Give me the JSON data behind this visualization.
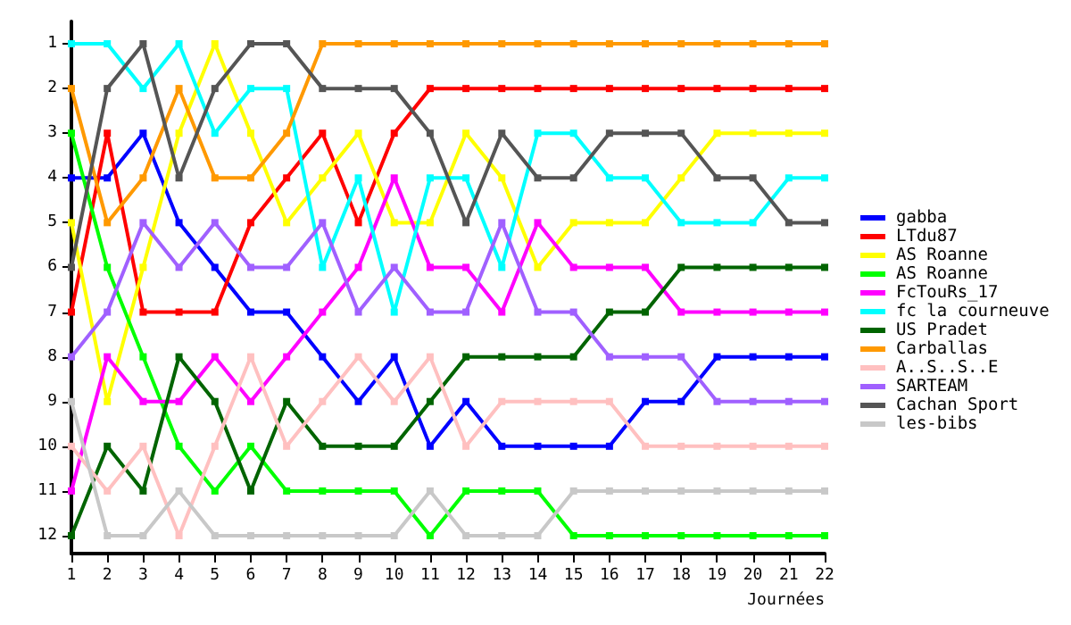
{
  "chart_data": {
    "type": "line",
    "xlabel": "Journées",
    "categories": [
      "1",
      "2",
      "3",
      "4",
      "5",
      "6",
      "7",
      "8",
      "9",
      "10",
      "11",
      "12",
      "13",
      "14",
      "15",
      "16",
      "17",
      "18",
      "19",
      "20",
      "21",
      "22"
    ],
    "ylim": [
      12.4,
      0.5
    ],
    "yticks": [
      1,
      2,
      3,
      4,
      5,
      6,
      7,
      8,
      9,
      10,
      11,
      12
    ],
    "grid": false,
    "legend": "right",
    "marker": "square",
    "line_style": "solid",
    "series": [
      {
        "name": "gabba",
        "color": "#0000ff",
        "values": [
          4,
          4,
          3,
          5,
          6,
          7,
          7,
          8,
          9,
          8,
          10,
          9,
          10,
          10,
          10,
          10,
          9,
          9,
          8,
          8,
          8,
          8
        ]
      },
      {
        "name": "LTdu87",
        "color": "#ff0000",
        "values": [
          7,
          3,
          7,
          7,
          7,
          5,
          4,
          3,
          5,
          3,
          2,
          2,
          2,
          2,
          2,
          2,
          2,
          2,
          2,
          2,
          2,
          2
        ]
      },
      {
        "name": "AS Roanne",
        "color": "#ffff00",
        "values": [
          5,
          9,
          6,
          3,
          1,
          3,
          5,
          4,
          3,
          5,
          5,
          3,
          4,
          6,
          5,
          5,
          5,
          4,
          3,
          3,
          3,
          3
        ]
      },
      {
        "name": "AS Roanne",
        "color": "#00ff00",
        "values": [
          3,
          6,
          8,
          10,
          11,
          10,
          11,
          11,
          11,
          11,
          12,
          11,
          11,
          11,
          12,
          12,
          12,
          12,
          12,
          12,
          12,
          12
        ]
      },
      {
        "name": "FcTouRs_17",
        "color": "#ff00ff",
        "values": [
          11,
          8,
          9,
          9,
          8,
          9,
          8,
          7,
          6,
          4,
          6,
          6,
          7,
          5,
          6,
          6,
          6,
          7,
          7,
          7,
          7,
          7
        ]
      },
      {
        "name": "fc la courneuve",
        "color": "#00ffff",
        "values": [
          1,
          1,
          2,
          1,
          3,
          2,
          2,
          6,
          4,
          7,
          4,
          4,
          6,
          3,
          3,
          4,
          4,
          5,
          5,
          5,
          4,
          4
        ]
      },
      {
        "name": "US Pradet",
        "color": "#006400",
        "values": [
          12,
          10,
          11,
          8,
          9,
          11,
          9,
          10,
          10,
          10,
          9,
          8,
          8,
          8,
          8,
          7,
          7,
          6,
          6,
          6,
          6,
          6
        ]
      },
      {
        "name": "Carballas",
        "color": "#ff9900",
        "values": [
          2,
          5,
          4,
          2,
          4,
          4,
          3,
          1,
          1,
          1,
          1,
          1,
          1,
          1,
          1,
          1,
          1,
          1,
          1,
          1,
          1,
          1
        ]
      },
      {
        "name": "A..S..S..E",
        "color": "#ffc0c0",
        "values": [
          10,
          11,
          10,
          12,
          10,
          8,
          10,
          9,
          8,
          9,
          8,
          10,
          9,
          9,
          9,
          9,
          10,
          10,
          10,
          10,
          10,
          10
        ]
      },
      {
        "name": "SARTEAM",
        "color": "#a060ff",
        "values": [
          8,
          7,
          5,
          6,
          5,
          6,
          6,
          5,
          7,
          6,
          7,
          7,
          5,
          7,
          7,
          8,
          8,
          8,
          9,
          9,
          9,
          9
        ]
      },
      {
        "name": "Cachan Sport",
        "color": "#555555",
        "values": [
          6,
          2,
          1,
          4,
          2,
          1,
          1,
          2,
          2,
          2,
          3,
          5,
          3,
          4,
          4,
          3,
          3,
          3,
          4,
          4,
          5,
          5
        ]
      },
      {
        "name": "les-bibs",
        "color": "#c8c8c8",
        "values": [
          9,
          12,
          12,
          11,
          12,
          12,
          12,
          12,
          12,
          12,
          11,
          12,
          12,
          12,
          11,
          11,
          11,
          11,
          11,
          11,
          11,
          11
        ]
      }
    ]
  }
}
